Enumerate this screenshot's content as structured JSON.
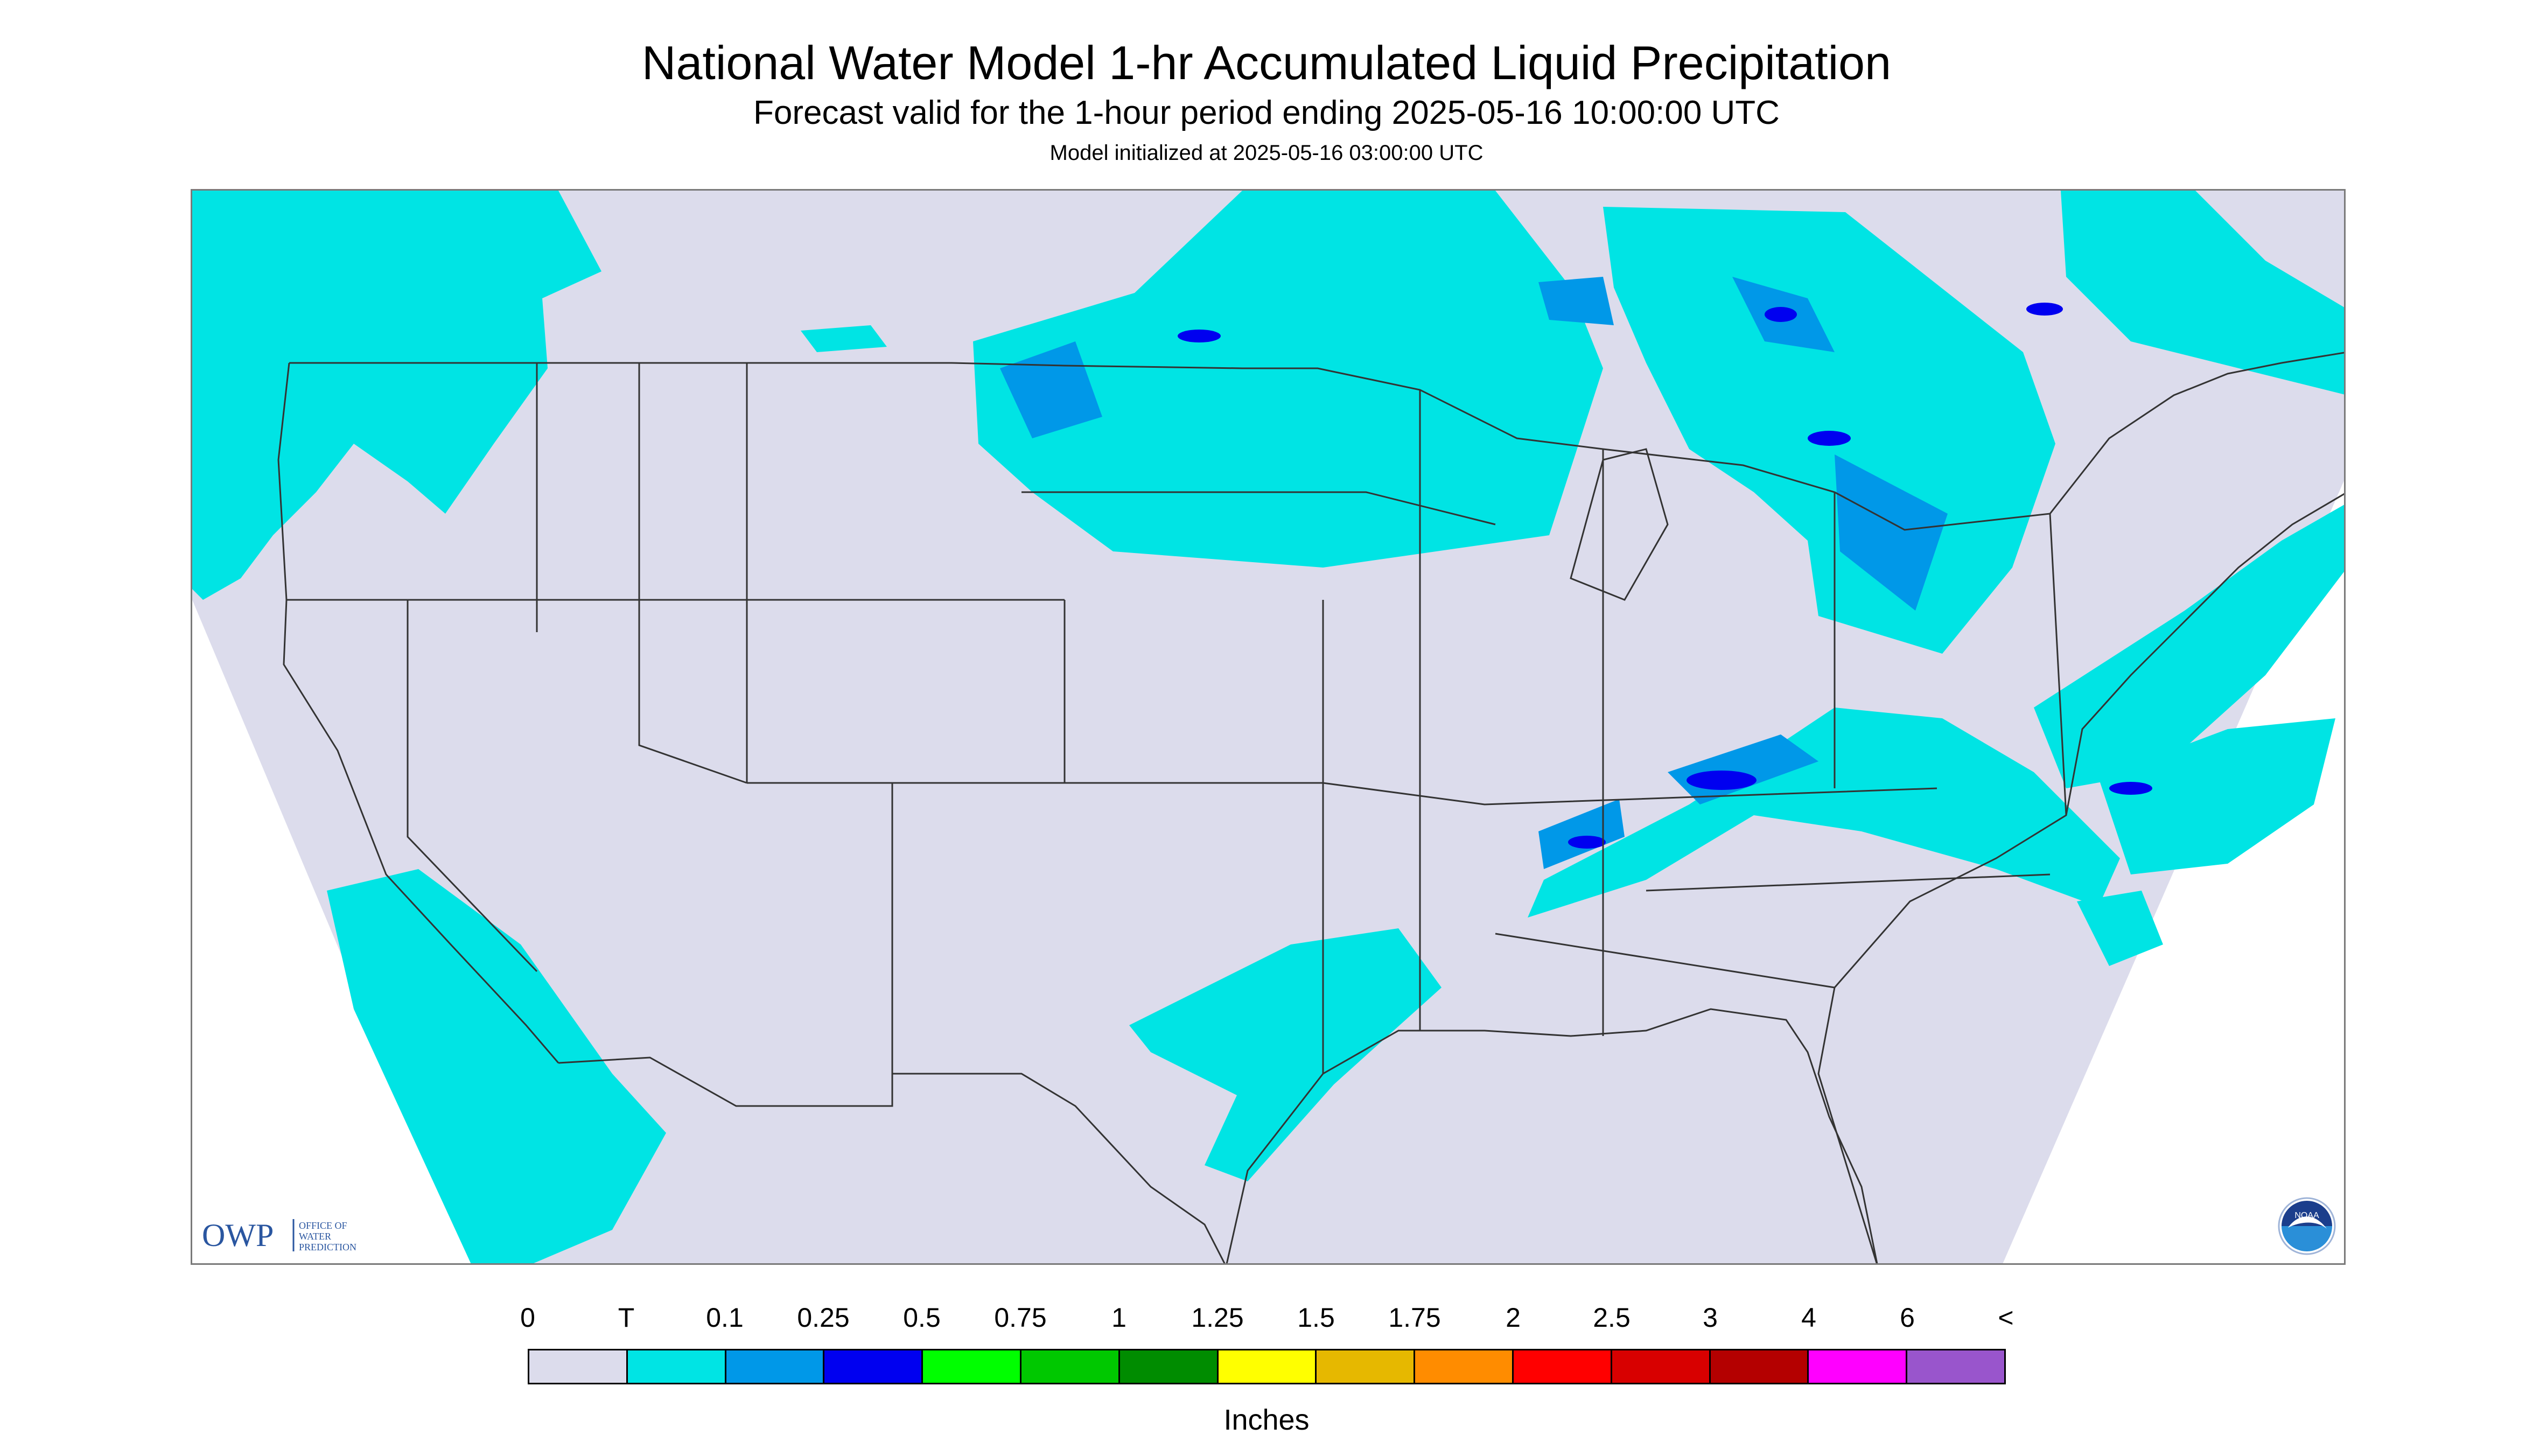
{
  "header": {
    "title": "National Water Model 1-hr Accumulated Liquid Precipitation",
    "subtitle": "Forecast valid for the 1-hour period ending 2025-05-16 10:00:00 UTC",
    "init_line": "Model initialized at 2025-05-16 03:00:00 UTC"
  },
  "map": {
    "background_color": "#dcdcec",
    "no_data_color": "#ffffff",
    "boundary_color": "#333333",
    "precip_colors": {
      "trace": "#00e4e4",
      "tenth": "#0098e8",
      "quarter": "#0000f0"
    },
    "logos": {
      "owp": {
        "abbrev": "OWP",
        "line1": "OFFICE OF",
        "line2": "WATER",
        "line3": "PREDICTION",
        "color": "#2a56a0"
      },
      "noaa": {
        "name": "noaa-logo",
        "text": "NOAA"
      }
    }
  },
  "legend": {
    "tick_labels": [
      "0",
      "T",
      "0.1",
      "0.25",
      "0.5",
      "0.75",
      "1",
      "1.25",
      "1.5",
      "1.75",
      "2",
      "2.5",
      "3",
      "4",
      "6",
      "<"
    ],
    "colors": [
      "#dcdcec",
      "#00e4e4",
      "#0098e8",
      "#0000f0",
      "#00ff00",
      "#00c800",
      "#008c00",
      "#ffff00",
      "#e6b800",
      "#ff8c00",
      "#ff0000",
      "#d80000",
      "#b40000",
      "#ff00ff",
      "#9955cc"
    ],
    "units": "Inches"
  }
}
